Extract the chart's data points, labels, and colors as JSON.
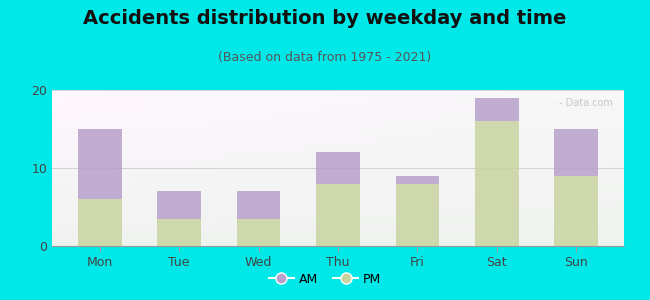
{
  "title": "Accidents distribution by weekday and time",
  "subtitle": "(Based on data from 1975 - 2021)",
  "categories": [
    "Mon",
    "Tue",
    "Wed",
    "Thu",
    "Fri",
    "Sat",
    "Sun"
  ],
  "pm_values": [
    6.0,
    3.5,
    3.5,
    8.0,
    8.0,
    16.0,
    9.0
  ],
  "am_values": [
    9.0,
    3.5,
    3.5,
    4.0,
    1.0,
    3.0,
    6.0
  ],
  "am_color": "#b8a0cc",
  "pm_color": "#c8d4a0",
  "background_color": "#00e8e8",
  "plot_bg_color": "#eef5ee",
  "ylim": [
    0,
    20
  ],
  "yticks": [
    0,
    10,
    20
  ],
  "bar_width": 0.55,
  "title_fontsize": 14,
  "subtitle_fontsize": 9,
  "tick_fontsize": 9,
  "legend_fontsize": 9,
  "watermark": "- Data.com",
  "watermark_color": "#bbbbbb"
}
